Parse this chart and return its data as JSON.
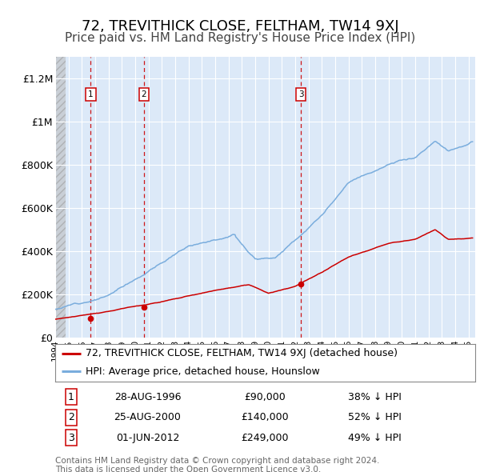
{
  "title": "72, TREVITHICK CLOSE, FELTHAM, TW14 9XJ",
  "subtitle": "Price paid vs. HM Land Registry's House Price Index (HPI)",
  "legend_label_red": "72, TREVITHICK CLOSE, FELTHAM, TW14 9XJ (detached house)",
  "legend_label_blue": "HPI: Average price, detached house, Hounslow",
  "footer_line1": "Contains HM Land Registry data © Crown copyright and database right 2024.",
  "footer_line2": "This data is licensed under the Open Government Licence v3.0.",
  "sale_year_nums": [
    1996.66,
    2000.66,
    2012.42
  ],
  "sale_prices": [
    90000,
    140000,
    249000
  ],
  "sale_labels": [
    "1",
    "2",
    "3"
  ],
  "sale_date_labels": [
    "28-AUG-1996",
    "25-AUG-2000",
    "01-JUN-2012"
  ],
  "sale_price_labels": [
    "£90,000",
    "£140,000",
    "£249,000"
  ],
  "sale_pct_labels": [
    "38% ↓ HPI",
    "52% ↓ HPI",
    "49% ↓ HPI"
  ],
  "xmin": 1994.0,
  "xmax": 2025.5,
  "ymin": 0,
  "ymax": 1300000,
  "yticks": [
    0,
    200000,
    400000,
    600000,
    800000,
    1000000,
    1200000
  ],
  "ytick_labels": [
    "£0",
    "£200K",
    "£400K",
    "£600K",
    "£800K",
    "£1M",
    "£1.2M"
  ],
  "background_color": "#ffffff",
  "plot_bg_color": "#dce9f8",
  "grid_color": "#ffffff",
  "red_line_color": "#cc0000",
  "blue_line_color": "#7aaddd",
  "dashed_line_color": "#cc0000",
  "sale_marker_color": "#cc0000",
  "title_fontsize": 13,
  "subtitle_fontsize": 11,
  "axis_fontsize": 9,
  "legend_fontsize": 9,
  "table_fontsize": 9,
  "footer_fontsize": 7.5,
  "hatch_region_end": 1994.75
}
